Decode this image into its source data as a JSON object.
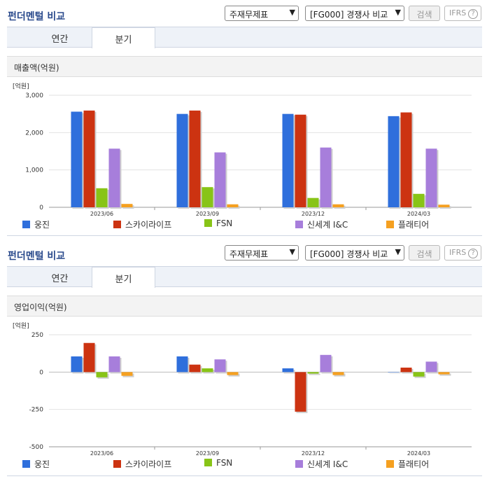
{
  "panels": [
    {
      "title": "펀더멘털 비교",
      "select1": "주재무제표",
      "select2": "[FG000] 경쟁사 비교",
      "search_label": "검색",
      "ifrs_label": "IFRS",
      "help_label": "?",
      "tabs": [
        "연간",
        "분기"
      ],
      "active_tab": "분기",
      "metric_label": "매출액(억원)",
      "unit_label": "[억원]"
    },
    {
      "title": "펀더멘털 비교",
      "select1": "주재무제표",
      "select2": "[FG000] 경쟁사 비교",
      "search_label": "검색",
      "ifrs_label": "IFRS",
      "help_label": "?",
      "tabs": [
        "연간",
        "분기"
      ],
      "active_tab": "분기",
      "metric_label": "영업이익(억원)",
      "unit_label": "[억원]"
    }
  ],
  "colors": {
    "series": [
      "#2f6fdc",
      "#cc3311",
      "#88c417",
      "#a77edb",
      "#f5a020"
    ]
  },
  "chart_data": [
    {
      "type": "bar",
      "title": "매출액(억원)",
      "ylabel": "[억원]",
      "categories": [
        "2023/06",
        "2023/09",
        "2023/12",
        "2024/03"
      ],
      "yticks": [
        0,
        1000,
        2000,
        3000
      ],
      "ytick_labels": [
        "0",
        "1,000",
        "2,000",
        "3,000"
      ],
      "ylim": [
        0,
        3000
      ],
      "legend_position": "bottom",
      "series": [
        {
          "name": "웅진",
          "values": [
            2560,
            2500,
            2500,
            2440
          ]
        },
        {
          "name": "스카이라이프",
          "values": [
            2590,
            2590,
            2480,
            2540
          ]
        },
        {
          "name": "FSN",
          "values": [
            510,
            540,
            250,
            360
          ]
        },
        {
          "name": "신세계 I&C",
          "values": [
            1570,
            1470,
            1600,
            1570
          ]
        },
        {
          "name": "플래티어",
          "values": [
            90,
            80,
            80,
            70
          ]
        }
      ]
    },
    {
      "type": "bar",
      "title": "영업이익(억원)",
      "ylabel": "[억원]",
      "categories": [
        "2023/06",
        "2023/09",
        "2023/12",
        "2024/03"
      ],
      "yticks": [
        -500,
        -250,
        0,
        250
      ],
      "ytick_labels": [
        "-500",
        "-250",
        "0",
        "250"
      ],
      "ylim": [
        -500,
        250
      ],
      "legend_position": "bottom",
      "series": [
        {
          "name": "웅진",
          "values": [
            105,
            105,
            25,
            0
          ]
        },
        {
          "name": "스카이라이프",
          "values": [
            195,
            50,
            -265,
            30
          ]
        },
        {
          "name": "FSN",
          "values": [
            -35,
            25,
            -10,
            -30
          ]
        },
        {
          "name": "신세계 I&C",
          "values": [
            105,
            85,
            115,
            70
          ]
        },
        {
          "name": "플래티어",
          "values": [
            -25,
            -20,
            -20,
            -15
          ]
        }
      ]
    }
  ]
}
